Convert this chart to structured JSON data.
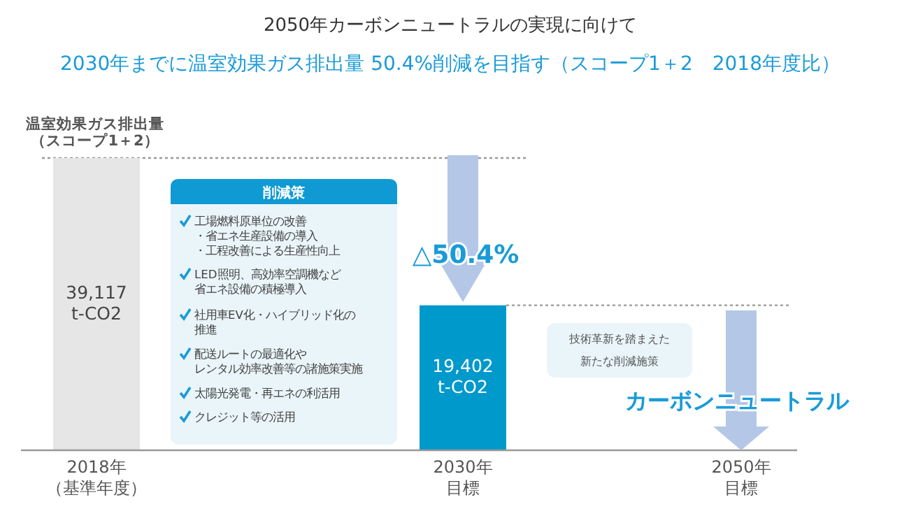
{
  "chart_data": {
    "type": "bar",
    "title": "2050年カーボンニュートラルの実現に向けて",
    "subtitle": "2030年までに温室効果ガス排出量 50.4%削減を目指す（スコープ1＋2　2018年度比）",
    "ylabel": "温室効果ガス排出量（スコープ1＋2）",
    "categories": [
      "2018年（基準年度）",
      "2030年目標",
      "2050年目標"
    ],
    "values": [
      39117,
      19402,
      null
    ],
    "colors": [
      "#e6e6e6",
      "#0099cc",
      null
    ],
    "value_labels": [
      "39,117\nt-CO2",
      "19,402\nt-CO2",
      null
    ],
    "ref_lines": [
      {
        "axis": "y",
        "value": 39117,
        "color": "#999999",
        "line_style": "dotted"
      },
      {
        "axis": "y",
        "value": 19402,
        "color": "#999999",
        "line_style": "dotted"
      }
    ],
    "annotations": [
      "削減策",
      "工場燃料原単位の改善・省エネ生産設備の導入・工程改善による生産性向上",
      "LED照明、高効率空調機など省エネ設備の積極導入",
      "社用車EV化・ハイブリッド化の推進",
      "配送ルートの最適化やレンタル効率改善等の諸施策実施",
      "太陽光発電・再エネの利活用",
      "クレジット等の活用",
      "△50.4%",
      "技術革新を踏まえた新たな削減施策",
      "カーボンニュートラル"
    ]
  }
}
